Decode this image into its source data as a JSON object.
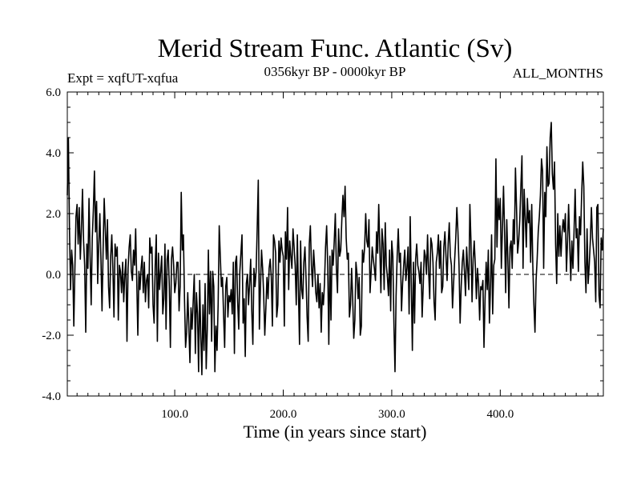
{
  "chart_data": {
    "type": "line",
    "title": "Merid Stream Func. Atlantic (Sv)",
    "left_label": "Expt = xqfUT-xqfua",
    "center_label": "0356kyr BP - 0000kyr BP",
    "right_label": "ALL_MONTHS",
    "xlabel": "Time (in years since start)",
    "ylabel": "",
    "xlim": [
      1,
      495
    ],
    "ylim": [
      -4.0,
      6.0
    ],
    "xticks": [
      100,
      200,
      300,
      400
    ],
    "xtick_labels": [
      "100.0",
      "200.0",
      "300.0",
      "400.0"
    ],
    "yticks": [
      -4,
      -2,
      0,
      2,
      4,
      6
    ],
    "ytick_labels": [
      "-4.0",
      "-2.0",
      "0.0",
      "2.0",
      "4.0",
      "6.0"
    ],
    "zero_line": {
      "value": 0.0,
      "style": "dashed"
    },
    "series": [
      {
        "name": "Merid Stream Func. Atlantic",
        "x_start": 1,
        "x_step": 1,
        "values": [
          2.6,
          4.5,
          1.5,
          -0.5,
          0.8,
          0.3,
          -1.7,
          0.2,
          1.9,
          2.3,
          1.0,
          2.2,
          0.5,
          1.5,
          2.8,
          1.1,
          0.3,
          -1.9,
          1.0,
          0.2,
          2.5,
          0.6,
          -1.0,
          1.2,
          2.1,
          3.4,
          1.4,
          2.4,
          -0.3,
          1.0,
          2.0,
          0.5,
          -1.2,
          0.8,
          2.5,
          1.5,
          0.5,
          1.8,
          -0.4,
          -1.1,
          0.6,
          1.3,
          0.2,
          -1.4,
          1.0,
          0.6,
          0.9,
          -1.5,
          0.3,
          0.1,
          -0.6,
          0.4,
          -0.9,
          0.0,
          0.5,
          -2.2,
          0.2,
          0.9,
          1.3,
          0.1,
          -0.2,
          0.8,
          0.3,
          1.5,
          -0.2,
          -2.0,
          0.1,
          -0.5,
          0.2,
          0.6,
          -0.6,
          0.4,
          -0.9,
          -0.2,
          0.0,
          -1.1,
          1.2,
          0.7,
          0.9,
          -1.0,
          -1.6,
          0.3,
          1.3,
          -2.2,
          0.7,
          -0.5,
          0.1,
          0.6,
          -1.3,
          -0.8,
          1.0,
          -1.8,
          0.5,
          0.8,
          -0.4,
          -2.4,
          0.5,
          0.9,
          0.3,
          -0.6,
          -0.3,
          0.4,
          0.4,
          -1.2,
          -0.4,
          2.7,
          0.8,
          1.3,
          -0.8,
          -2.4,
          -1.9,
          -0.6,
          -1.7,
          -2.9,
          -1.1,
          -1.8,
          -0.9,
          0.0,
          -2.6,
          -0.6,
          -1.3,
          -3.2,
          -0.2,
          -2.0,
          -3.3,
          -1.0,
          -2.5,
          -0.3,
          -3.1,
          -1.8,
          0.8,
          -1.3,
          0.1,
          -2.2,
          0.1,
          -0.4,
          -3.2,
          -1.7,
          -2.5,
          -1.0,
          1.6,
          0.6,
          -0.4,
          -0.1,
          -1.3,
          -2.4,
          -0.4,
          -0.1,
          -1.4,
          -0.7,
          -0.9,
          -0.5,
          -1.3,
          0.4,
          -2.6,
          0.4,
          0.6,
          -0.9,
          -1.8,
          0.1,
          0.7,
          1.3,
          -1.6,
          -0.8,
          -2.7,
          -0.3,
          0.0,
          -1.0,
          -0.3,
          0.5,
          -1.2,
          -2.3,
          0.2,
          -0.4,
          0.1,
          1.5,
          3.1,
          -1.8,
          -0.4,
          0.8,
          0.2,
          -0.7,
          -2.0,
          -1.1,
          -0.1,
          -0.8,
          0.2,
          0.5,
          -0.1,
          -1.7,
          1.3,
          1.1,
          0.7,
          -1.4,
          -1.0,
          1.1,
          0.4,
          1.2,
          0.8,
          0.6,
          -1.7,
          1.4,
          0.5,
          2.2,
          -0.5,
          1.1,
          0.6,
          0.2,
          1.5,
          0.9,
          0.3,
          -1.0,
          1.3,
          -0.5,
          -2.3,
          1.1,
          -0.5,
          -0.8,
          0.4,
          0.9,
          -0.1,
          -1.4,
          -2.2,
          1.0,
          1.6,
          0.3,
          -0.4,
          0.8,
          0.2,
          -0.6,
          -0.9,
          0.0,
          -1.1,
          -0.3,
          -1.9,
          -0.6,
          -1.0,
          -0.3,
          0.9,
          1.6,
          0.3,
          -2.3,
          0.6,
          -1.5,
          0.8,
          0.3,
          1.1,
          2.0,
          0.2,
          -0.6,
          1.5,
          0.6,
          0.8,
          1.8,
          2.6,
          1.9,
          2.9,
          1.2,
          0.5,
          0.7,
          -1.4,
          -1.0,
          0.2,
          -0.8,
          -2.1,
          -1.5,
          0.4,
          0.0,
          -0.8,
          -0.1,
          -2.0,
          -1.7,
          0.8,
          0.4,
          0.9,
          2.0,
          1.1,
          0.9,
          1.8,
          -0.6,
          0.1,
          0.9,
          0.5,
          0.2,
          -0.2,
          1.4,
          0.7,
          2.3,
          0.9,
          -0.6,
          1.5,
          1.0,
          -0.5,
          1.7,
          0.3,
          -0.1,
          -0.7,
          0.8,
          -1.2,
          1.1,
          0.6,
          -1.6,
          -3.2,
          -0.7,
          0.6,
          1.5,
          0.4,
          0.7,
          -1.2,
          -0.3,
          0.3,
          0.8,
          -0.2,
          0.2,
          0.9,
          -1.3,
          1.9,
          -0.3,
          -2.5,
          0.4,
          -1.6,
          0.5,
          1.0,
          0.3,
          0.1,
          -0.3,
          0.4,
          -1.4,
          -0.4,
          0.8,
          0.6,
          0.0,
          1.3,
          0.1,
          -0.8,
          1.2,
          1.0,
          0.4,
          -0.9,
          -1.5,
          0.4,
          0.7,
          1.3,
          0.2,
          1.1,
          -0.6,
          -0.4,
          0.9,
          1.4,
          0.6,
          -0.2,
          1.0,
          1.7,
          0.6,
          0.3,
          -1.1,
          -0.3,
          0.5,
          1.2,
          2.2,
          1.4,
          0.3,
          -1.6,
          -0.4,
          0.4,
          0.8,
          0.1,
          -0.7,
          0.9,
          0.2,
          -0.5,
          2.3,
          1.1,
          -0.9,
          0.5,
          1.1,
          0.3,
          -0.8,
          0.2,
          -0.3,
          -1.5,
          -0.4,
          -0.5,
          -0.2,
          -2.4,
          -0.8,
          0.4,
          -0.5,
          0.8,
          -1.6,
          -0.4,
          1.3,
          -1.3,
          0.3,
          0.5,
          3.8,
          0.9,
          2.5,
          1.8,
          2.5,
          0.2,
          1.5,
          2.9,
          1.4,
          -0.6,
          1.8,
          0.5,
          -1.1,
          0.9,
          1.1,
          0.2,
          1.8,
          1.0,
          3.5,
          2.2,
          0.7,
          1.1,
          1.8,
          2.9,
          3.9,
          0.2,
          2.8,
          1.9,
          0.9,
          2.5,
          1.7,
          2.1,
          0.4,
          2.3,
          0.3,
          -1.0,
          -1.9,
          -0.2,
          0.5,
          1.4,
          1.9,
          2.6,
          3.8,
          3.4,
          0.2,
          2.7,
          1.9,
          4.2,
          2.9,
          3.0,
          4.5,
          5.0,
          3.3,
          2.8,
          3.7,
          1.0,
          -0.3,
          2.0,
          0.6,
          1.6,
          0.6,
          1.4,
          1.8,
          1.4,
          2.0,
          0.1,
          1.1,
          2.3,
          1.0,
          -0.2,
          1.1,
          0.2,
          1.4,
          2.8,
          1.2,
          1.5,
          0.1,
          1.9,
          1.3,
          2.6,
          3.7,
          2.9,
          0.4,
          -0.6,
          1.5,
          -0.3,
          0.3,
          1.1,
          2.2,
          1.2,
          0.8,
          0.4,
          -0.9,
          2.2,
          2.3,
          -0.7,
          -1.1,
          1.2,
          0.8,
          1.5,
          0.2,
          -0.2
        ]
      }
    ]
  }
}
